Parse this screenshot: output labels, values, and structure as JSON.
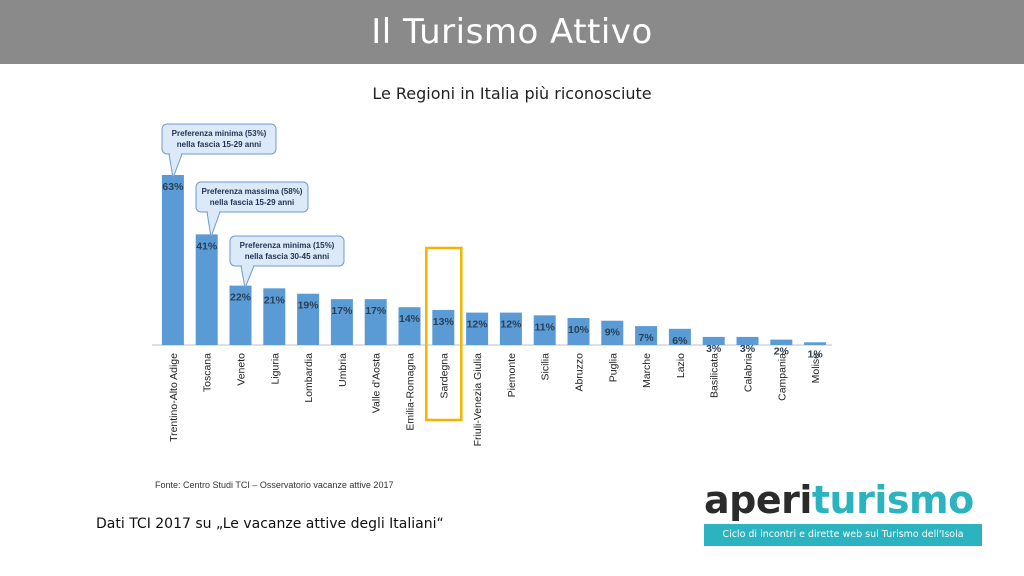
{
  "header": {
    "title": "Il Turismo Attivo"
  },
  "chart_data": {
    "type": "bar",
    "title": "Le Regioni in Italia più riconosciute",
    "categories": [
      "Trentino-Alto Adige",
      "Toscana",
      "Veneto",
      "Liguria",
      "Lombardia",
      "Umbria",
      "Valle d'Aosta",
      "Emilia-Romagna",
      "Sardegna",
      "Friuli-Venezia Giulia",
      "Piemonte",
      "Sicilia",
      "Abruzzo",
      "Puglia",
      "Marche",
      "Lazio",
      "Basilicata",
      "Calabria",
      "Campania",
      "Molise"
    ],
    "values": [
      63,
      41,
      22,
      21,
      19,
      17,
      17,
      14,
      13,
      12,
      12,
      11,
      10,
      9,
      7,
      6,
      3,
      3,
      2,
      1
    ],
    "data_labels": [
      "63%",
      "41%",
      "22%",
      "21%",
      "19%",
      "17%",
      "17%",
      "14%",
      "13%",
      "12%",
      "12%",
      "11%",
      "10%",
      "9%",
      "7%",
      "6%",
      "3%",
      "3%",
      "2%",
      "1%"
    ],
    "ylim": [
      0,
      65
    ],
    "grid": false,
    "bar_color": "#5b9bd5",
    "highlight": {
      "category": "Sardegna",
      "color": "#f2b400"
    },
    "callouts": [
      {
        "category": "Trentino-Alto Adige",
        "line1": "Preferenza minima (53%)",
        "line2": "nella fascia 15-29 anni"
      },
      {
        "category": "Toscana",
        "line1": "Preferenza massima (58%)",
        "line2": "nella fascia 15-29 anni"
      },
      {
        "category": "Veneto",
        "line1": "Preferenza minima (15%)",
        "line2": "nella fascia 30-45 anni"
      }
    ],
    "source": "Fonte: Centro Studi TCI – Osservatorio vacanze attive 2017"
  },
  "footer": {
    "note": "Dati TCI 2017 su „Le vacanze attive degli Italiani“"
  },
  "logo": {
    "part1": "aperi",
    "part2": "turismo",
    "tagline": "Ciclo di incontri e dirette web sul Turismo dell'Isola",
    "color_dark": "#2b2b2b",
    "color_accent": "#2bb3c0"
  }
}
